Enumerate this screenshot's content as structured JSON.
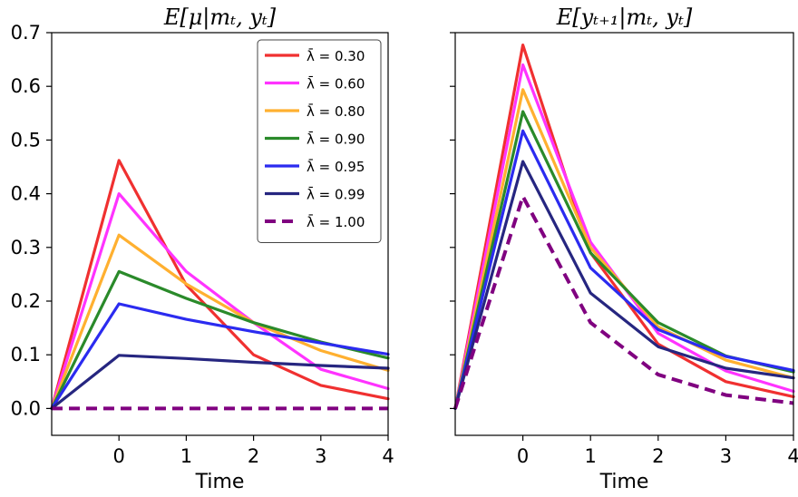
{
  "chart_data": [
    {
      "type": "line",
      "title": "E[μ|mₜ, yₜ]",
      "xlabel": "Time",
      "ylabel": "",
      "x": [
        -1,
        0,
        1,
        2,
        3,
        4
      ],
      "xlim": [
        -1,
        4
      ],
      "ylim": [
        -0.05,
        0.7
      ],
      "xticks": [
        0,
        1,
        2,
        3,
        4
      ],
      "yticks": [
        0.0,
        0.1,
        0.2,
        0.3,
        0.4,
        0.5,
        0.6,
        0.7
      ],
      "ytick_labels": [
        "0.0",
        "0.1",
        "0.2",
        "0.3",
        "0.4",
        "0.5",
        "0.6",
        "0.7"
      ],
      "grid": false,
      "legend": "top-right",
      "series": [
        {
          "name": "λ̄ = 0.30",
          "color": "#f03030",
          "dashed": false,
          "values": [
            0,
            0.462,
            0.23,
            0.1,
            0.043,
            0.018
          ]
        },
        {
          "name": "λ̄ = 0.60",
          "color": "#ff33ff",
          "dashed": false,
          "values": [
            0,
            0.4,
            0.255,
            0.16,
            0.073,
            0.037
          ]
        },
        {
          "name": "λ̄ = 0.80",
          "color": "#ffb030",
          "dashed": false,
          "values": [
            0,
            0.323,
            0.232,
            0.16,
            0.108,
            0.071
          ]
        },
        {
          "name": "λ̄ = 0.90",
          "color": "#2a8a2a",
          "dashed": false,
          "values": [
            0,
            0.255,
            0.205,
            0.16,
            0.124,
            0.094
          ]
        },
        {
          "name": "λ̄ = 0.95",
          "color": "#2b2bf0",
          "dashed": false,
          "values": [
            0,
            0.195,
            0.166,
            0.143,
            0.122,
            0.101
          ]
        },
        {
          "name": "λ̄ = 0.99",
          "color": "#262680",
          "dashed": false,
          "values": [
            0,
            0.099,
            0.093,
            0.086,
            0.08,
            0.075
          ]
        },
        {
          "name": "λ̄ = 1.00",
          "color": "#800080",
          "dashed": true,
          "values": [
            0,
            0,
            0,
            0,
            0,
            0
          ]
        }
      ]
    },
    {
      "type": "line",
      "title": "E[yₜ₊₁|mₜ, yₜ]",
      "xlabel": "Time",
      "ylabel": "",
      "x": [
        -1,
        0,
        1,
        2,
        3,
        4
      ],
      "xlim": [
        -1,
        4
      ],
      "ylim": [
        -0.05,
        0.7
      ],
      "xticks": [
        0,
        1,
        2,
        3,
        4
      ],
      "yticks": [
        0.0,
        0.1,
        0.2,
        0.3,
        0.4,
        0.5,
        0.6,
        0.7
      ],
      "grid": false,
      "series": [
        {
          "name": "λ̄ = 0.30",
          "color": "#f03030",
          "dashed": false,
          "values": [
            0,
            0.677,
            0.29,
            0.12,
            0.05,
            0.022
          ]
        },
        {
          "name": "λ̄ = 0.60",
          "color": "#ff33ff",
          "dashed": false,
          "values": [
            0,
            0.64,
            0.31,
            0.14,
            0.07,
            0.032
          ]
        },
        {
          "name": "λ̄ = 0.80",
          "color": "#ffb030",
          "dashed": false,
          "values": [
            0,
            0.594,
            0.3,
            0.152,
            0.09,
            0.057
          ]
        },
        {
          "name": "λ̄ = 0.90",
          "color": "#2a8a2a",
          "dashed": false,
          "values": [
            0,
            0.553,
            0.29,
            0.16,
            0.098,
            0.068
          ]
        },
        {
          "name": "λ̄ = 0.95",
          "color": "#2b2bf0",
          "dashed": false,
          "values": [
            0,
            0.517,
            0.262,
            0.147,
            0.097,
            0.071
          ]
        },
        {
          "name": "λ̄ = 0.99",
          "color": "#262680",
          "dashed": false,
          "values": [
            0,
            0.46,
            0.215,
            0.115,
            0.075,
            0.057
          ]
        },
        {
          "name": "λ̄ = 1.00",
          "color": "#800080",
          "dashed": true,
          "values": [
            0,
            0.395,
            0.16,
            0.063,
            0.025,
            0.01
          ]
        }
      ]
    }
  ]
}
